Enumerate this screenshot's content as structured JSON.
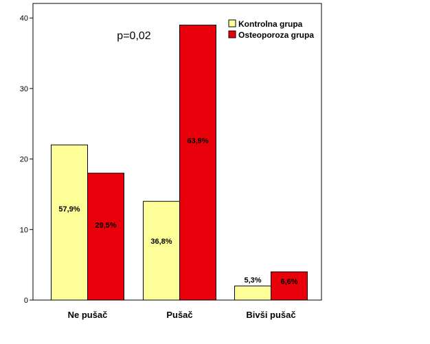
{
  "chart_data": {
    "type": "bar",
    "categories": [
      "Ne pušač",
      "Pušač",
      "Bivši pušač"
    ],
    "series": [
      {
        "name": "Kontrolna grupa",
        "values": [
          22,
          14,
          2
        ],
        "labels": [
          "57,9%",
          "36,8%",
          "5,3%"
        ],
        "color": "#ffff99"
      },
      {
        "name": "Osteoporoza grupa",
        "values": [
          18,
          39,
          4
        ],
        "labels": [
          "29,5%",
          "63,9%",
          "6,6%"
        ],
        "color": "#e8000b"
      }
    ],
    "annotation": "p=0,02",
    "ylim": [
      0,
      42
    ],
    "yticks": [
      0,
      10,
      20,
      30,
      40
    ],
    "xlabel": "",
    "ylabel": "",
    "grid": false,
    "legend": "top-right"
  }
}
